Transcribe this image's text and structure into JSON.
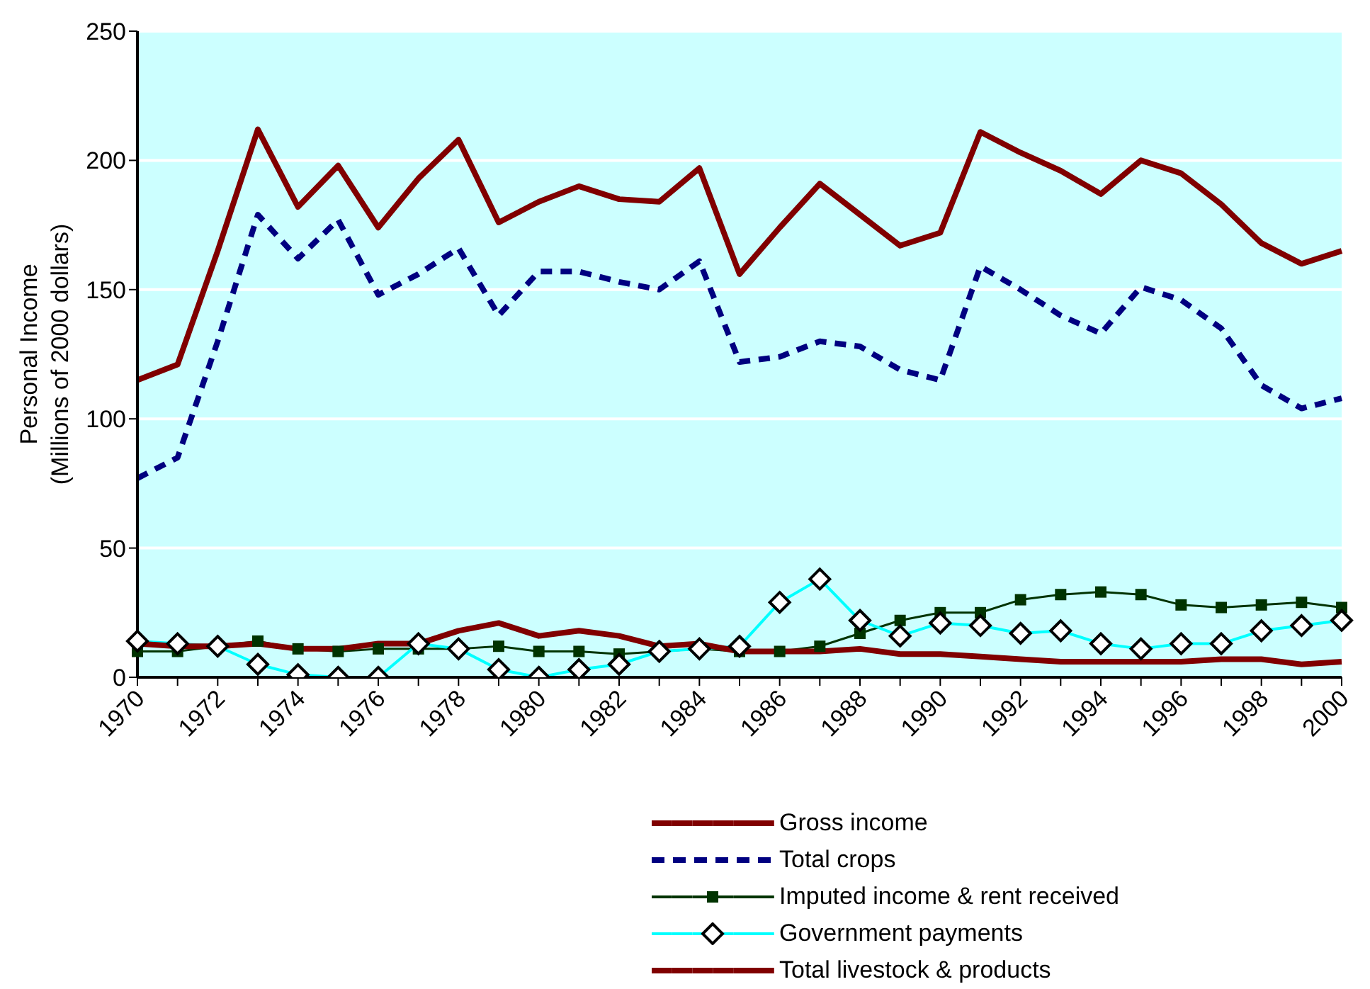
{
  "chart_data": {
    "type": "line",
    "ylabel": "Personal Income\n(Millions of 2000 dollars)",
    "categories": [
      "1970",
      null,
      "1972",
      null,
      "1974",
      null,
      "1976",
      null,
      "1978",
      null,
      "1980",
      null,
      "1982",
      null,
      "1984",
      null,
      "1986",
      null,
      "1988",
      null,
      "1990",
      null,
      "1992",
      null,
      "1994",
      null,
      "1996",
      null,
      "1998",
      null,
      "2000"
    ],
    "ylim": [
      0,
      250
    ],
    "yticks": [
      0,
      50,
      100,
      150,
      200,
      250
    ],
    "grid": "y",
    "legend": "bottom",
    "series": [
      {
        "name": "Gross income",
        "color": "#800000",
        "line_style": "solid",
        "marker": "none",
        "values": [
          115,
          121,
          165,
          212,
          182,
          198,
          174,
          193,
          208,
          176,
          184,
          190,
          185,
          184,
          197,
          156,
          174,
          191,
          179,
          167,
          172,
          211,
          203,
          196,
          187,
          200,
          195,
          183,
          168,
          160,
          165
        ]
      },
      {
        "name": "Total crops",
        "color": "#000080",
        "line_style": "dashed",
        "marker": "none",
        "values": [
          77,
          85,
          130,
          179,
          162,
          177,
          148,
          156,
          166,
          140,
          157,
          157,
          153,
          150,
          161,
          122,
          124,
          130,
          128,
          119,
          115,
          159,
          150,
          140,
          133,
          151,
          146,
          135,
          113,
          104,
          108
        ]
      },
      {
        "name": "Imputed income & rent received",
        "color": "#003300",
        "line_style": "solid",
        "marker": "square",
        "values": [
          10,
          10,
          12,
          14,
          11,
          10,
          11,
          11,
          11,
          12,
          10,
          10,
          9,
          10,
          11,
          10,
          10,
          12,
          17,
          22,
          25,
          25,
          30,
          32,
          33,
          32,
          28,
          27,
          28,
          29,
          27
        ]
      },
      {
        "name": "Government payments",
        "color": "#00ffff",
        "line_style": "solid",
        "marker": "diamond",
        "values": [
          14,
          13,
          12,
          5,
          1,
          0,
          0,
          13,
          11,
          3,
          0,
          3,
          5,
          10,
          11,
          12,
          29,
          38,
          22,
          16,
          21,
          20,
          17,
          18,
          13,
          11,
          13,
          13,
          18,
          20,
          22
        ]
      },
      {
        "name": "Total livestock & products",
        "color": "#800000",
        "line_style": "solid",
        "marker": "none",
        "values": [
          13,
          12,
          12,
          13,
          11,
          11,
          13,
          13,
          18,
          21,
          16,
          18,
          16,
          12,
          13,
          10,
          10,
          10,
          11,
          9,
          9,
          8,
          7,
          6,
          6,
          6,
          6,
          7,
          7,
          5,
          6
        ]
      }
    ]
  }
}
